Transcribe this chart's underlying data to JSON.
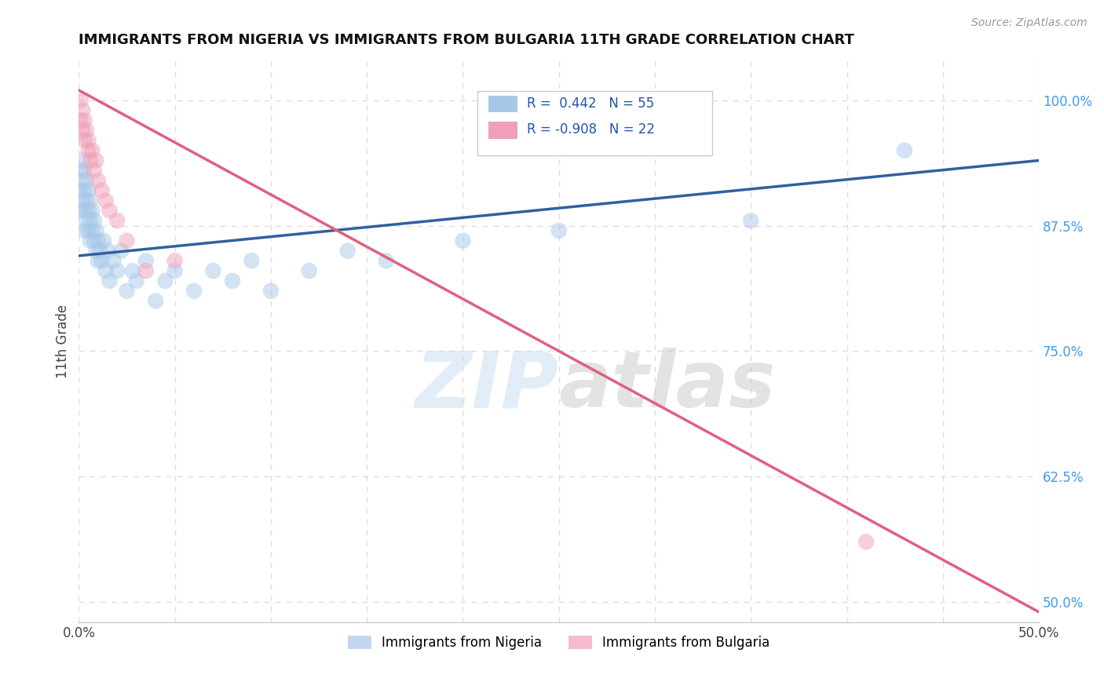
{
  "title": "IMMIGRANTS FROM NIGERIA VS IMMIGRANTS FROM BULGARIA 11TH GRADE CORRELATION CHART",
  "source": "Source: ZipAtlas.com",
  "ylabel": "11th Grade",
  "xlim": [
    0.0,
    0.5
  ],
  "ylim": [
    0.48,
    1.04
  ],
  "xticks": [
    0.0,
    0.05,
    0.1,
    0.15,
    0.2,
    0.25,
    0.3,
    0.35,
    0.4,
    0.45,
    0.5
  ],
  "yticks_right": [
    1.0,
    0.875,
    0.75,
    0.625,
    0.5
  ],
  "ytick_right_labels": [
    "100.0%",
    "87.5%",
    "75.0%",
    "62.5%",
    "50.0%"
  ],
  "nigeria_color": "#a8c8e8",
  "bulgaria_color": "#f0a0b8",
  "nigeria_line_color": "#3060a0",
  "bulgaria_line_color": "#e06080",
  "legend_R_nigeria": "0.442",
  "legend_N_nigeria": "55",
  "legend_R_bulgaria": "-0.908",
  "legend_N_bulgaria": "22",
  "nigeria_label": "Immigrants from Nigeria",
  "bulgaria_label": "Immigrants from Bulgaria",
  "nigeria_x": [
    0.001,
    0.001,
    0.001,
    0.002,
    0.002,
    0.002,
    0.003,
    0.003,
    0.003,
    0.003,
    0.004,
    0.004,
    0.004,
    0.005,
    0.005,
    0.005,
    0.006,
    0.006,
    0.006,
    0.007,
    0.007,
    0.008,
    0.008,
    0.009,
    0.009,
    0.01,
    0.01,
    0.011,
    0.012,
    0.013,
    0.014,
    0.015,
    0.016,
    0.018,
    0.02,
    0.022,
    0.025,
    0.028,
    0.03,
    0.035,
    0.04,
    0.045,
    0.05,
    0.06,
    0.07,
    0.08,
    0.09,
    0.1,
    0.12,
    0.14,
    0.16,
    0.2,
    0.25,
    0.35,
    0.43
  ],
  "nigeria_y": [
    0.93,
    0.91,
    0.89,
    0.94,
    0.92,
    0.9,
    0.93,
    0.91,
    0.89,
    0.87,
    0.92,
    0.9,
    0.88,
    0.91,
    0.89,
    0.87,
    0.9,
    0.88,
    0.86,
    0.89,
    0.87,
    0.88,
    0.86,
    0.87,
    0.85,
    0.86,
    0.84,
    0.85,
    0.84,
    0.86,
    0.83,
    0.85,
    0.82,
    0.84,
    0.83,
    0.85,
    0.81,
    0.83,
    0.82,
    0.84,
    0.8,
    0.82,
    0.83,
    0.81,
    0.83,
    0.82,
    0.84,
    0.81,
    0.83,
    0.85,
    0.84,
    0.86,
    0.87,
    0.88,
    0.95
  ],
  "bulgaria_x": [
    0.001,
    0.001,
    0.002,
    0.002,
    0.003,
    0.003,
    0.004,
    0.005,
    0.005,
    0.006,
    0.007,
    0.008,
    0.009,
    0.01,
    0.012,
    0.014,
    0.016,
    0.02,
    0.025,
    0.035,
    0.05,
    0.41
  ],
  "bulgaria_y": [
    1.0,
    0.98,
    0.99,
    0.97,
    0.98,
    0.96,
    0.97,
    0.96,
    0.95,
    0.94,
    0.95,
    0.93,
    0.94,
    0.92,
    0.91,
    0.9,
    0.89,
    0.88,
    0.86,
    0.83,
    0.84,
    0.56
  ],
  "nigeria_line_x0": 0.0,
  "nigeria_line_y0": 0.845,
  "nigeria_line_x1": 0.5,
  "nigeria_line_y1": 0.94,
  "bulgaria_line_x0": 0.0,
  "bulgaria_line_y0": 1.01,
  "bulgaria_line_x1": 0.5,
  "bulgaria_line_y1": 0.49,
  "watermark": "ZIPatlas",
  "background_color": "#ffffff",
  "grid_color": "#dddddd"
}
